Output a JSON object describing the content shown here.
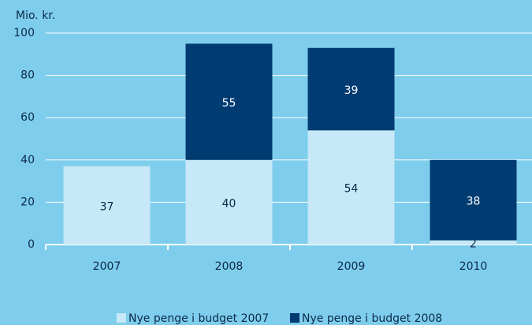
{
  "chart_data": {
    "type": "stacked_bar",
    "y_label": "Mio. kr.",
    "categories": [
      "2007",
      "2008",
      "2009",
      "2010"
    ],
    "series": [
      {
        "name": "Nye penge i budget 2007",
        "color": "#c6e8f7",
        "values": [
          37,
          40,
          54,
          2
        ]
      },
      {
        "name": "Nye penge i budget 2008",
        "color": "#003b71",
        "values": [
          null,
          55,
          39,
          38
        ]
      }
    ],
    "ylim": [
      0,
      100
    ],
    "yticks": [
      0,
      20,
      40,
      60,
      80,
      100
    ],
    "grid": true
  }
}
